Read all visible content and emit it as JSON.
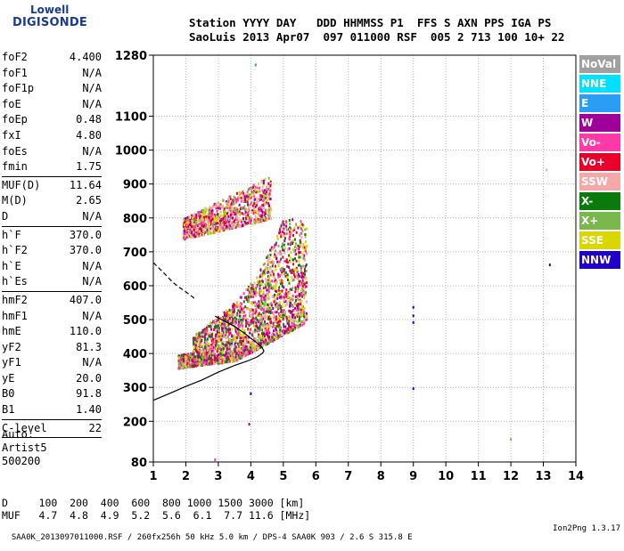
{
  "logo": {
    "line1": "Lowell",
    "line2": "DIGISONDE"
  },
  "header": {
    "row1": "Station YYYY DAY   DDD HHMMSS P1  FFS S AXN PPS IGA PS",
    "row2": "SaoLuis 2013 Apr07  097 011000 RSF  005 2 713 100 10+ 22"
  },
  "params": [
    {
      "name": "foF2",
      "value": "4.400"
    },
    {
      "name": "foF1",
      "value": "N/A"
    },
    {
      "name": "foF1p",
      "value": "N/A"
    },
    {
      "name": "foE",
      "value": "N/A"
    },
    {
      "name": "foEp",
      "value": "0.48"
    },
    {
      "name": "fxI",
      "value": "4.80"
    },
    {
      "name": "foEs",
      "value": "N/A"
    },
    {
      "name": "fmin",
      "value": "1.75"
    },
    {
      "sep": true
    },
    {
      "name": "MUF(D)",
      "value": "11.64"
    },
    {
      "name": "M(D)",
      "value": "2.65"
    },
    {
      "name": "D",
      "value": "N/A"
    },
    {
      "sep": true
    },
    {
      "name": "h`F",
      "value": "370.0"
    },
    {
      "name": "h`F2",
      "value": "370.0"
    },
    {
      "name": "h`E",
      "value": "N/A"
    },
    {
      "name": "h`Es",
      "value": "N/A"
    },
    {
      "sep": true
    },
    {
      "name": "hmF2",
      "value": "407.0"
    },
    {
      "name": "hmF1",
      "value": "N/A"
    },
    {
      "name": "hmE",
      "value": "110.0"
    },
    {
      "name": "yF2",
      "value": "81.3"
    },
    {
      "name": "yF1",
      "value": "N/A"
    },
    {
      "name": "yE",
      "value": "20.0"
    },
    {
      "name": "B0",
      "value": "91.8"
    },
    {
      "name": "B1",
      "value": "1.40"
    },
    {
      "sep": true
    },
    {
      "name": "C-level",
      "value": "22"
    },
    {
      "sep": true
    }
  ],
  "auto": {
    "line1": "Auto:",
    "line2": "Artist5",
    "line3": "500200"
  },
  "mufTable": {
    "row1": "D     100  200  400  600  800 1000 1500 3000 [km]",
    "row2": "MUF   4.7  4.8  4.9  5.2  5.6  6.1  7.7 11.6 [MHz]"
  },
  "footer": {
    "left": "SAA0K_2013097011000.RSF / 260fx256h 50 kHz 5.0 km / DPS-4 SAA0K 903 / 2.6 S 315.8 E",
    "right": "Ion2Png 1.3.17"
  },
  "legend": [
    {
      "label": "NoVal",
      "color": "#a0a0a0"
    },
    {
      "label": "NNE",
      "color": "#00e0ff"
    },
    {
      "label": "E",
      "color": "#2a9df4"
    },
    {
      "label": "W",
      "color": "#a0009a"
    },
    {
      "label": "Vo-",
      "color": "#ff3aa8"
    },
    {
      "label": "Vo+",
      "color": "#e8002a"
    },
    {
      "label": "SSW",
      "color": "#f4a8a8"
    },
    {
      "label": "X-",
      "color": "#0a7a0a"
    },
    {
      "label": "X+",
      "color": "#7ab84e"
    },
    {
      "label": "SSE",
      "color": "#d8d800"
    },
    {
      "label": "NNW",
      "color": "#2000c8"
    }
  ],
  "chart_data": {
    "type": "scatter",
    "title": "",
    "xlabel": "",
    "ylabel": "",
    "xlim": [
      1,
      14
    ],
    "ylim": [
      80,
      1280
    ],
    "xticks": [
      1,
      2,
      3,
      4,
      5,
      6,
      7,
      8,
      9,
      10,
      11,
      12,
      13,
      14
    ],
    "yticks": [
      80,
      200,
      300,
      400,
      500,
      600,
      700,
      800,
      900,
      1000,
      1100,
      1280
    ],
    "grid": true,
    "regions": [
      {
        "name": "F2 trace (O/X)",
        "fmin": 1.75,
        "fmax": 5.7,
        "hmin": 360,
        "hmax": 800,
        "colors": [
          "#e8002a",
          "#a0009a",
          "#ff3aa8",
          "#7ab84e",
          "#0a7a0a",
          "#d8d800",
          "#f4a8a8"
        ]
      },
      {
        "name": "F2 second-hop trace",
        "fmin": 1.9,
        "fmax": 4.6,
        "hmin": 740,
        "hmax": 1000,
        "colors": [
          "#e8002a",
          "#a0009a",
          "#ff3aa8",
          "#7ab84e",
          "#d8d800",
          "#f4a8a8"
        ]
      }
    ],
    "sparse_points": [
      {
        "x": 9.0,
        "y": 535,
        "color": "#2000c8"
      },
      {
        "x": 9.0,
        "y": 510,
        "color": "#2000c8"
      },
      {
        "x": 9.0,
        "y": 490,
        "color": "#2000c8"
      },
      {
        "x": 9.0,
        "y": 295,
        "color": "#2000c8"
      },
      {
        "x": 13.2,
        "y": 660,
        "color": "#2000c8"
      },
      {
        "x": 4.15,
        "y": 1250,
        "color": "#2a9df4"
      },
      {
        "x": 4.0,
        "y": 280,
        "color": "#2000c8"
      },
      {
        "x": 3.95,
        "y": 190,
        "color": "#a0009a"
      },
      {
        "x": 12.0,
        "y": 145,
        "color": "#7ab84e"
      },
      {
        "x": 13.1,
        "y": 940,
        "color": "#f4a8a8"
      },
      {
        "x": 2.9,
        "y": 85,
        "color": "#ff3aa8"
      }
    ],
    "profile_curve": [
      [
        1,
        262
      ],
      [
        1.5,
        282
      ],
      [
        2,
        303
      ],
      [
        2.5,
        322
      ],
      [
        3,
        345
      ],
      [
        3.5,
        365
      ],
      [
        3.9,
        378
      ],
      [
        4.2,
        390
      ],
      [
        4.35,
        400
      ],
      [
        4.4,
        407
      ],
      [
        4.35,
        418
      ],
      [
        4.2,
        430
      ],
      [
        4.0,
        445
      ],
      [
        3.8,
        460
      ],
      [
        3.5,
        480
      ],
      [
        3.2,
        495
      ],
      [
        2.9,
        510
      ]
    ],
    "profile_dashed": [
      [
        1,
        668
      ],
      [
        1.3,
        640
      ],
      [
        1.6,
        610
      ],
      [
        1.8,
        595
      ],
      [
        2.1,
        575
      ],
      [
        2.3,
        560
      ]
    ]
  }
}
